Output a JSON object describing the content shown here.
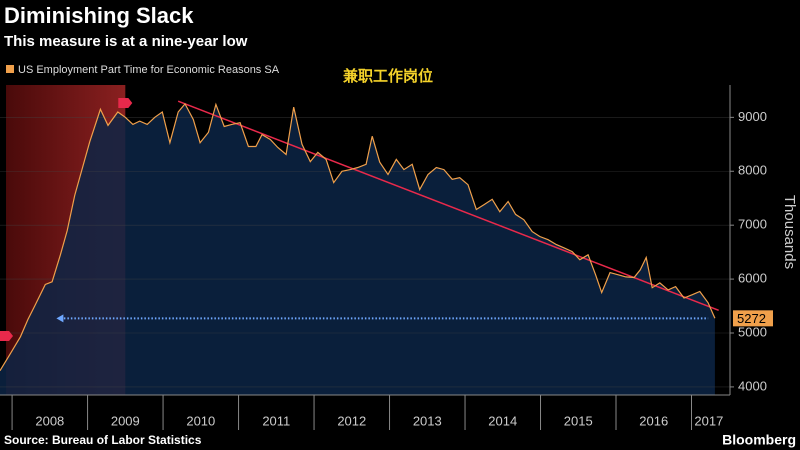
{
  "chart_data": {
    "type": "line",
    "title": "Diminishing Slack",
    "subtitle": "This measure is at a nine-year low",
    "annotation": "兼职工作岗位",
    "y_axis_label": "Thousands",
    "source": "Source: Bureau of Labor Statistics",
    "brand": "Bloomberg",
    "x": [
      2007.84,
      2007.97,
      2008.11,
      2008.21,
      2008.3,
      2008.44,
      2008.53,
      2008.64,
      2008.73,
      2008.83,
      2008.94,
      2009.03,
      2009.17,
      2009.27,
      2009.4,
      2009.5,
      2009.6,
      2009.69,
      2009.79,
      2009.89,
      2009.99,
      2010.09,
      2010.2,
      2010.29,
      2010.4,
      2010.49,
      2010.6,
      2010.7,
      2010.81,
      2010.91,
      2011.02,
      2011.13,
      2011.23,
      2011.31,
      2011.42,
      2011.52,
      2011.63,
      2011.73,
      2011.84,
      2011.95,
      2012.05,
      2012.16,
      2012.26,
      2012.37,
      2012.48,
      2012.58,
      2012.69,
      2012.77,
      2012.87,
      2012.98,
      2013.09,
      2013.19,
      2013.3,
      2013.4,
      2013.51,
      2013.62,
      2013.72,
      2013.83,
      2013.93,
      2014.04,
      2014.15,
      2014.25,
      2014.36,
      2014.46,
      2014.57,
      2014.67,
      2014.78,
      2014.89,
      2014.99,
      2015.1,
      2015.21,
      2015.31,
      2015.42,
      2015.52,
      2015.63,
      2015.73,
      2015.81,
      2015.92,
      2016.03,
      2016.13,
      2016.24,
      2016.32,
      2016.4,
      2016.48,
      2016.58,
      2016.69,
      2016.79,
      2016.9,
      2017.01,
      2017.11,
      2017.22,
      2017.31
    ],
    "series": [
      {
        "name": "US Employment Part Time for Economic Reasons SA",
        "color": "#f0a04b",
        "values": [
          4300,
          4600,
          4930,
          5250,
          5500,
          5900,
          5950,
          6450,
          6900,
          7550,
          8100,
          8550,
          9150,
          8850,
          9100,
          9000,
          8870,
          8930,
          8870,
          9000,
          9100,
          8530,
          9100,
          9250,
          8960,
          8530,
          8720,
          9240,
          8830,
          8870,
          8900,
          8460,
          8460,
          8680,
          8590,
          8440,
          8310,
          9190,
          8500,
          8180,
          8350,
          8220,
          7790,
          8000,
          8030,
          8070,
          8130,
          8650,
          8170,
          7940,
          8220,
          8030,
          8130,
          7660,
          7940,
          8070,
          8030,
          7850,
          7880,
          7750,
          7290,
          7380,
          7480,
          7250,
          7440,
          7200,
          7100,
          6880,
          6790,
          6730,
          6640,
          6580,
          6510,
          6360,
          6450,
          6080,
          5750,
          6120,
          6080,
          6040,
          6030,
          6170,
          6400,
          5840,
          5930,
          5800,
          5860,
          5650,
          5710,
          5770,
          5560,
          5272
        ]
      }
    ],
    "xlim": [
      2007.84,
      2017.51
    ],
    "xticks": [
      {
        "value": 2008.5,
        "label": "2008"
      },
      {
        "value": 2009.5,
        "label": "2009"
      },
      {
        "value": 2010.5,
        "label": "2010"
      },
      {
        "value": 2011.5,
        "label": "2011"
      },
      {
        "value": 2012.5,
        "label": "2012"
      },
      {
        "value": 2013.5,
        "label": "2013"
      },
      {
        "value": 2014.5,
        "label": "2014"
      },
      {
        "value": 2015.5,
        "label": "2015"
      },
      {
        "value": 2016.5,
        "label": "2016"
      },
      {
        "value": 2017.23,
        "label": "2017"
      }
    ],
    "xgrid": [
      2008,
      2009,
      2010,
      2011,
      2012,
      2013,
      2014,
      2015,
      2016,
      2017
    ],
    "ylim": [
      3850,
      9600
    ],
    "yticks": [
      4000,
      5000,
      6000,
      7000,
      8000,
      9000
    ],
    "grid": true,
    "recession": [
      2007.92,
      2009.5
    ],
    "trend_line": {
      "x": [
        2010.2,
        2017.36
      ],
      "y": [
        9300,
        5420
      ],
      "color": "#e8294b"
    },
    "reference_arrow": {
      "x": [
        2008.64,
        2017.22
      ],
      "color": "#6fa8ff"
    },
    "area_color": "#0c2545"
  }
}
